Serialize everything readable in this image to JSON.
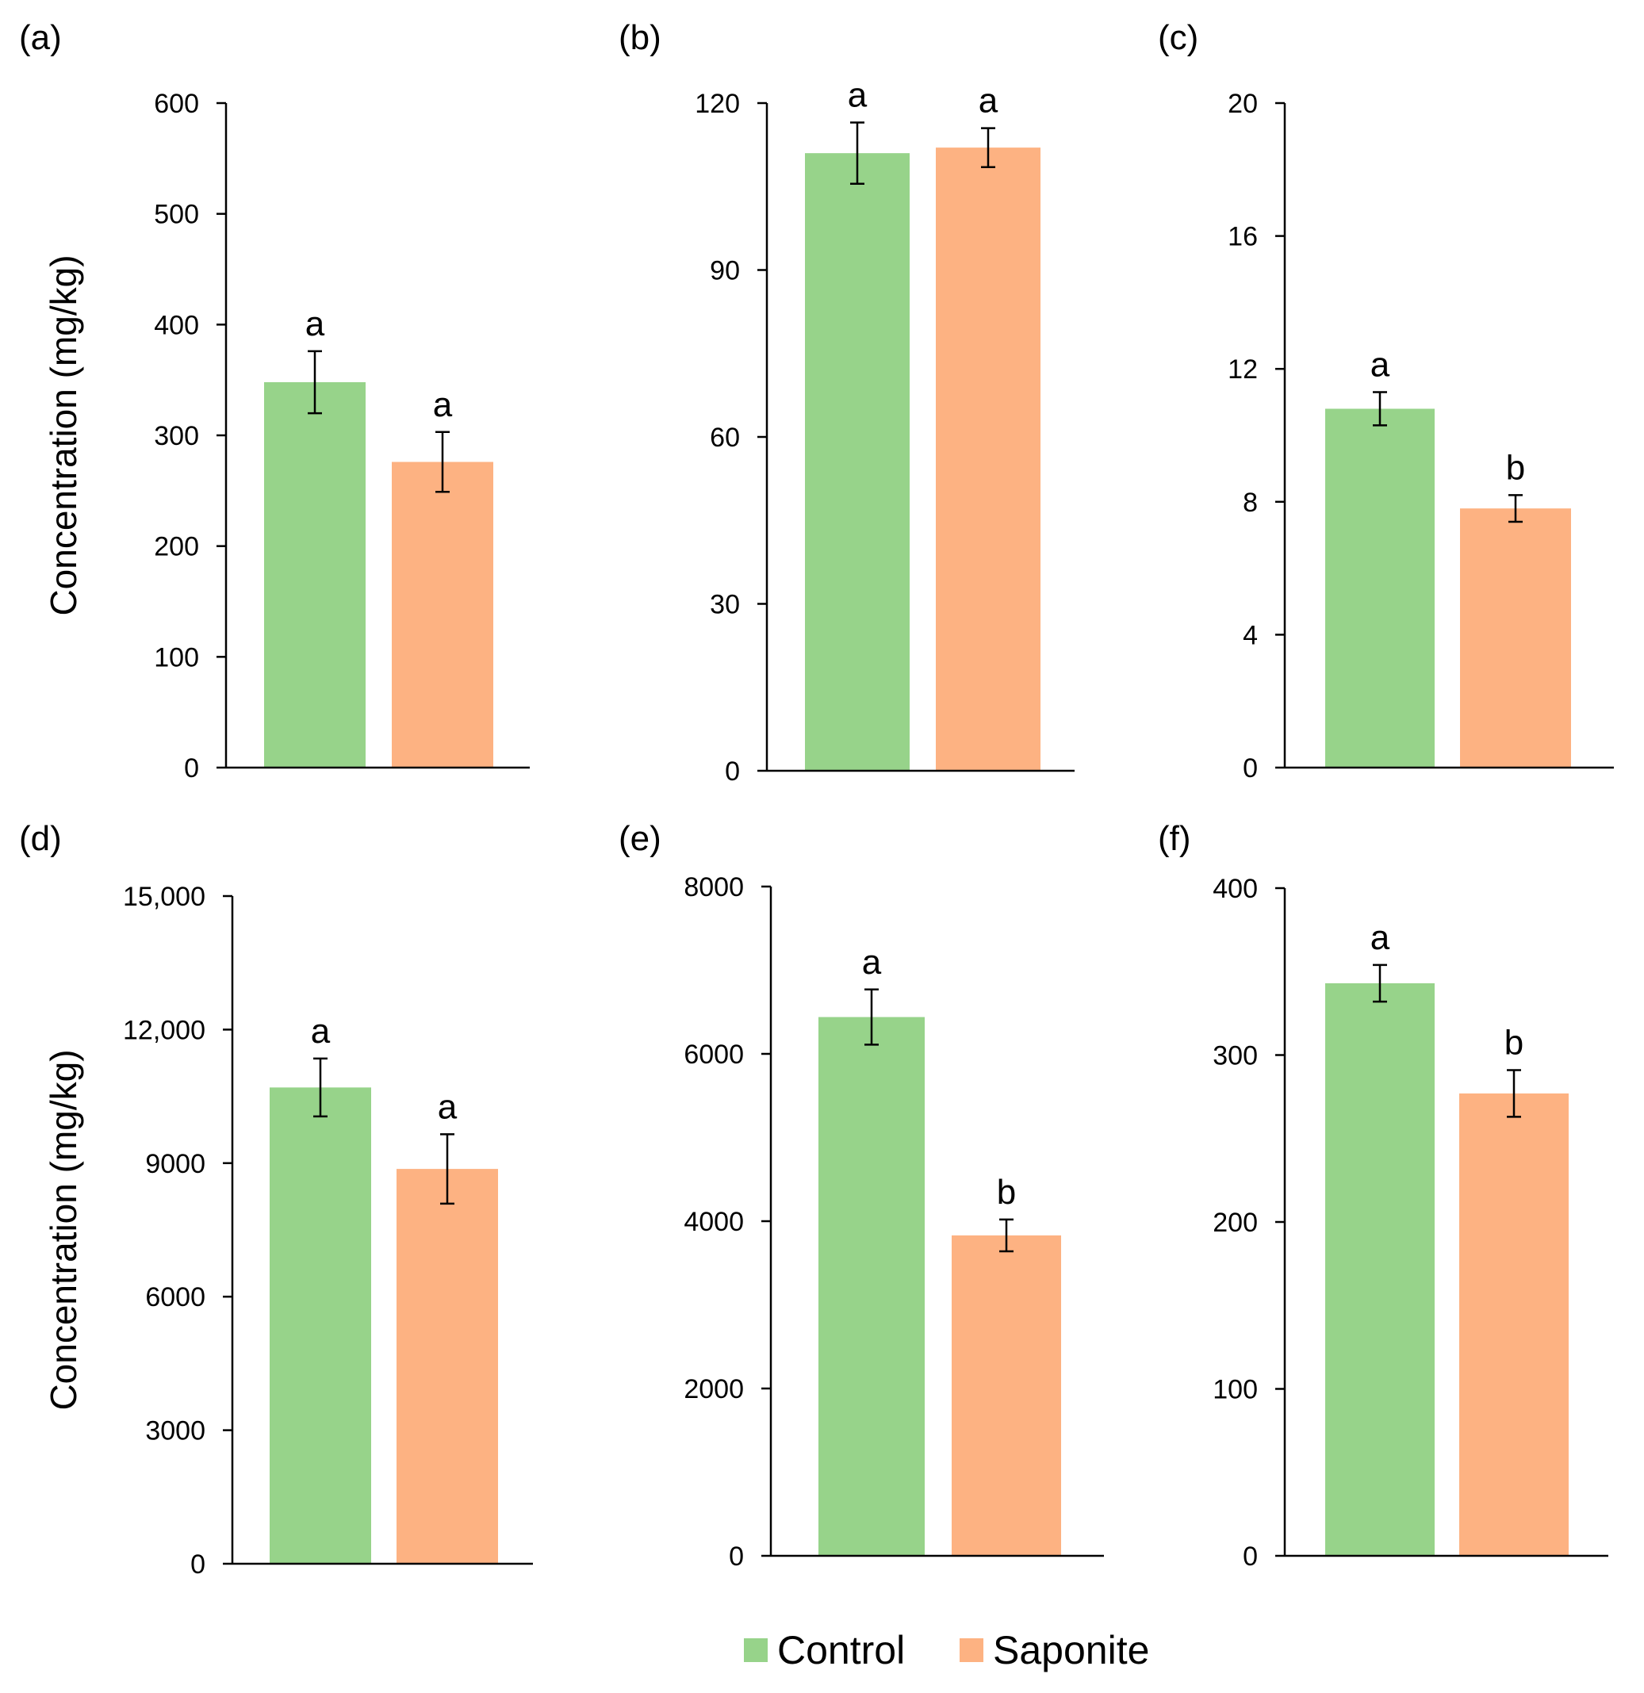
{
  "figure": {
    "legend": {
      "items": [
        {
          "label": "Control",
          "color": "#97d38a"
        },
        {
          "label": "Saponite",
          "color": "#fdb282"
        }
      ]
    }
  },
  "chart_data": [
    {
      "type": "bar",
      "panel": "(a)",
      "ylabel": "Concentration (mg/kg)",
      "categories": [
        "Control",
        "Saponite"
      ],
      "values": [
        348,
        276
      ],
      "errors": [
        28,
        27
      ],
      "significance": [
        "a",
        "a"
      ],
      "ylim": [
        0,
        600
      ],
      "ticks": [
        0,
        100,
        200,
        300,
        400,
        500,
        600
      ],
      "tick_labels": [
        "0",
        "100",
        "200",
        "300",
        "400",
        "500",
        "600"
      ]
    },
    {
      "type": "bar",
      "panel": "(b)",
      "ylabel": "",
      "categories": [
        "Control",
        "Saponite"
      ],
      "values": [
        111,
        112
      ],
      "errors": [
        5.5,
        3.5
      ],
      "significance": [
        "a",
        "a"
      ],
      "ylim": [
        0,
        120
      ],
      "ticks": [
        0,
        30,
        60,
        90,
        120
      ],
      "tick_labels": [
        "0",
        "30",
        "60",
        "90",
        "120"
      ]
    },
    {
      "type": "bar",
      "panel": "(c)",
      "ylabel": "",
      "categories": [
        "Control",
        "Saponite"
      ],
      "values": [
        10.8,
        7.8
      ],
      "errors": [
        0.5,
        0.4
      ],
      "significance": [
        "a",
        "b"
      ],
      "ylim": [
        0,
        20
      ],
      "ticks": [
        0,
        4,
        8,
        12,
        16,
        20
      ],
      "tick_labels": [
        "0",
        "4",
        "8",
        "12",
        "16",
        "20"
      ]
    },
    {
      "type": "bar",
      "panel": "(d)",
      "ylabel": "Concentration (mg/kg)",
      "categories": [
        "Control",
        "Saponite"
      ],
      "values": [
        10700,
        8870
      ],
      "errors": [
        650,
        780
      ],
      "significance": [
        "a",
        "a"
      ],
      "ylim": [
        0,
        15000
      ],
      "ticks": [
        0,
        3000,
        6000,
        9000,
        12000,
        15000
      ],
      "tick_labels": [
        "0",
        "3000",
        "6000",
        "9000",
        "12,000",
        "15,000"
      ]
    },
    {
      "type": "bar",
      "panel": "(e)",
      "ylabel": "",
      "categories": [
        "Control",
        "Saponite"
      ],
      "values": [
        6440,
        3830
      ],
      "errors": [
        330,
        190
      ],
      "significance": [
        "a",
        "b"
      ],
      "ylim": [
        0,
        8000
      ],
      "ticks": [
        0,
        2000,
        4000,
        6000,
        8000
      ],
      "tick_labels": [
        "0",
        "2000",
        "4000",
        "6000",
        "8000"
      ]
    },
    {
      "type": "bar",
      "panel": "(f)",
      "ylabel": "",
      "categories": [
        "Control",
        "Saponite"
      ],
      "values": [
        343,
        277
      ],
      "errors": [
        11,
        14
      ],
      "significance": [
        "a",
        "b"
      ],
      "ylim": [
        0,
        400
      ],
      "ticks": [
        0,
        100,
        200,
        300,
        400
      ],
      "tick_labels": [
        "0",
        "100",
        "200",
        "300",
        "400"
      ]
    }
  ]
}
